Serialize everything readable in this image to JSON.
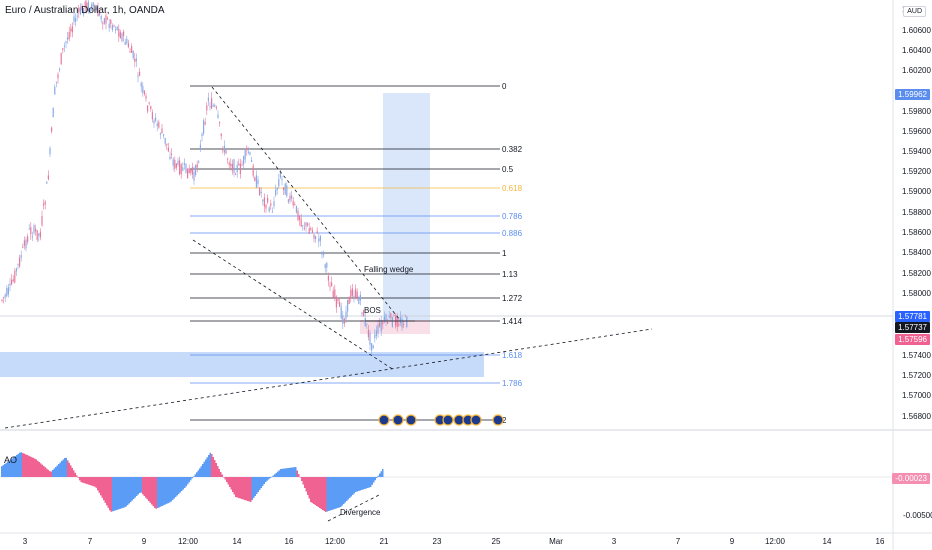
{
  "header": {
    "title": "Euro / Australian Dollar, 1h, OANDA",
    "currency": "AUD"
  },
  "price_axis": {
    "ticks": [
      "1.60600",
      "1.60400",
      "1.60200",
      "1.59800",
      "1.59600",
      "1.59400",
      "1.59200",
      "1.59000",
      "1.58800",
      "1.58600",
      "1.58400",
      "1.58200",
      "1.58000",
      "1.57400",
      "1.57200",
      "1.57000",
      "1.56800"
    ],
    "top_tick": "1."
  },
  "time_axis": {
    "ticks": [
      "3",
      "7",
      "9",
      "12:00",
      "14",
      "16",
      "12:00",
      "21",
      "23",
      "25",
      "Mar",
      "3",
      "7",
      "9",
      "12:00",
      "14",
      "16"
    ]
  },
  "price_badges": {
    "target": "1.59962",
    "upper": "1.57781",
    "last": "1.57737",
    "lower": "1.57596"
  },
  "fib_levels": [
    "0",
    "0.382",
    "0.5",
    "0.618",
    "0.786",
    "0.886",
    "1",
    "1.13",
    "1.272",
    "1.414",
    "1.618",
    "1.786",
    "2"
  ],
  "annotations": {
    "pattern": "Falling wedge",
    "bos": "BOS",
    "divergence": "Divergence"
  },
  "oscillator": {
    "name": "AO",
    "value": "-0.00023",
    "tick_low": "-0.00500"
  },
  "colors": {
    "bull": "#89a8e6",
    "bear": "#e8779a",
    "ao_up": "#5b9cf6",
    "ao_down": "#f06292",
    "zone": "#bcd3f8",
    "target_box": "#d6e4fa",
    "fib_black": "#131722",
    "fib_orange": "#f6b73c",
    "fib_blue": "#5b8def",
    "badge_blue": "#2962ff",
    "badge_dark": "#131722",
    "badge_pink": "#f06292"
  }
}
